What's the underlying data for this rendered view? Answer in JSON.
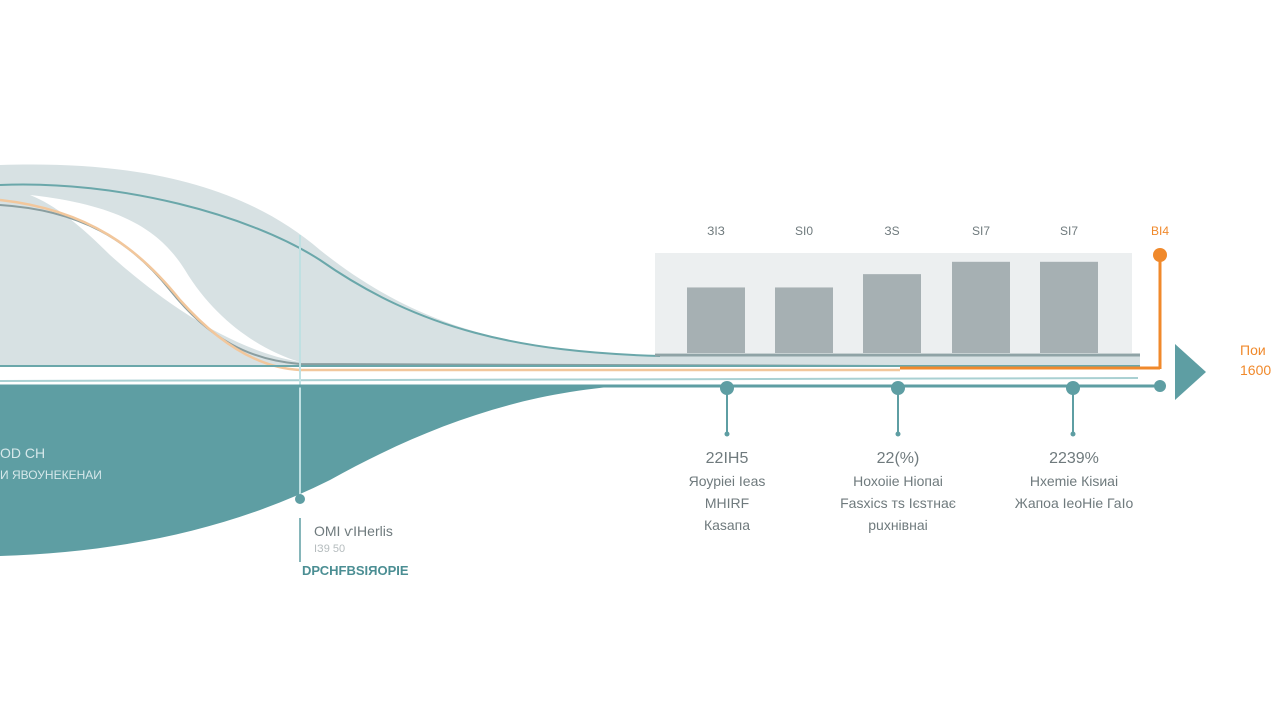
{
  "colors": {
    "teal": "#5e9ea3",
    "light_area": "#d5dfe1",
    "bar": "#a6b0b3",
    "panel": "#eceff0",
    "orange": "#f0892b",
    "text": "#6f7a7d"
  },
  "bars": {
    "labels": [
      "ЗІЗ",
      "ЅІ0",
      "ЗЅ",
      "ЅІ7",
      "ЅІ7"
    ],
    "highlight_label": "ВІ4",
    "relative_heights": [
      0.69,
      0.69,
      0.83,
      0.96,
      0.96
    ]
  },
  "arrow_label": {
    "line1": "Пои",
    "line2": "1600"
  },
  "milestones": [
    {
      "value": "22ІН5",
      "lines": [
        "Яоуріеі Іеаѕ",
        "МНІRF",
        "Каѕапа"
      ]
    },
    {
      "value": "22(%)",
      "lines": [
        "Нохоііе Ніопаі",
        "Fаѕхісѕ тѕ Ієѕтнає",
        "рuхнівнаі"
      ]
    },
    {
      "value": "2239%",
      "lines": [
        "Нхеmіе Кіѕиаі",
        "Жапоа ІеоНіе ГаІо"
      ]
    }
  ],
  "left_label": {
    "line1": "ОD СН",
    "line2": "И ЯВОУНЕКЕНАИ"
  },
  "marker_label": {
    "line1": "ОМІ ѵІНеrlіѕ",
    "line2": "ІЗ9 50",
    "line3": "DРСНFВЅІЯОРІЕ"
  }
}
